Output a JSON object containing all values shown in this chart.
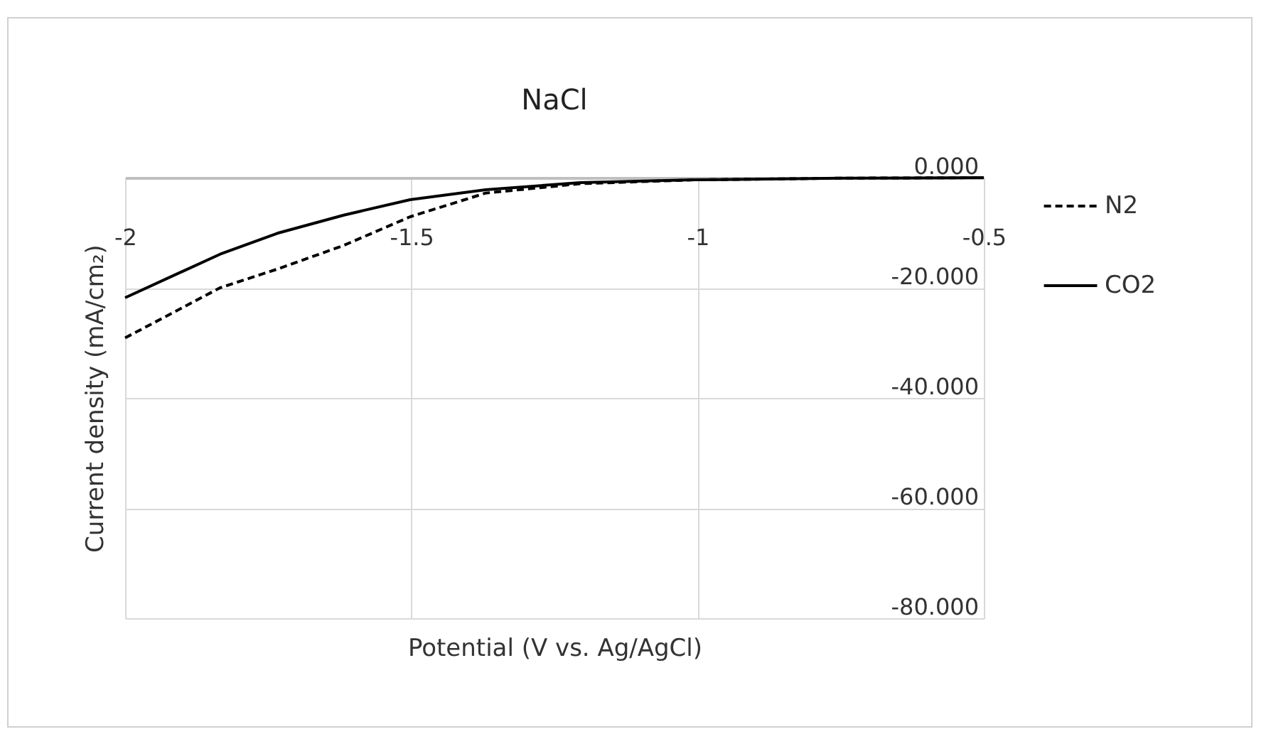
{
  "chart_data": {
    "type": "line",
    "title": "NaCl",
    "xlabel": "Potential (V vs. Ag/AgCl)",
    "ylabel": "Current density (mA/cm₂)",
    "x": [
      -2,
      -1.834,
      -1.734,
      -1.618,
      -1.502,
      -1.37,
      -1.205,
      -1.006,
      -0.75,
      -0.5
    ],
    "series": [
      {
        "name": "N2",
        "color": "#000000",
        "line_style": "dashed",
        "values": [
          -29.1,
          -20.0,
          -16.6,
          -12.3,
          -7.1,
          -2.8,
          -1.1,
          -0.4,
          -0.1,
          0
        ]
      },
      {
        "name": "CO2",
        "color": "#000000",
        "line_style": "solid",
        "values": [
          -21.8,
          -13.9,
          -10.1,
          -6.8,
          -4.0,
          -2.2,
          -0.9,
          -0.4,
          -0.1,
          0
        ]
      }
    ],
    "xlim": [
      -2,
      -0.5
    ],
    "xticks": [
      {
        "value": -2,
        "label": "-2"
      },
      {
        "value": -1.5,
        "label": "-1.5"
      },
      {
        "value": -1,
        "label": "-1"
      },
      {
        "value": -0.5,
        "label": "-0.5"
      }
    ],
    "ylim": [
      -80,
      0
    ],
    "yticks": [
      {
        "value": 0,
        "label": "0.000"
      },
      {
        "value": -20,
        "label": "-20.000"
      },
      {
        "value": -40,
        "label": "-40.000"
      },
      {
        "value": -60,
        "label": "-60.000"
      },
      {
        "value": -80,
        "label": "-80.000"
      }
    ],
    "grid": true,
    "legend": "right"
  }
}
